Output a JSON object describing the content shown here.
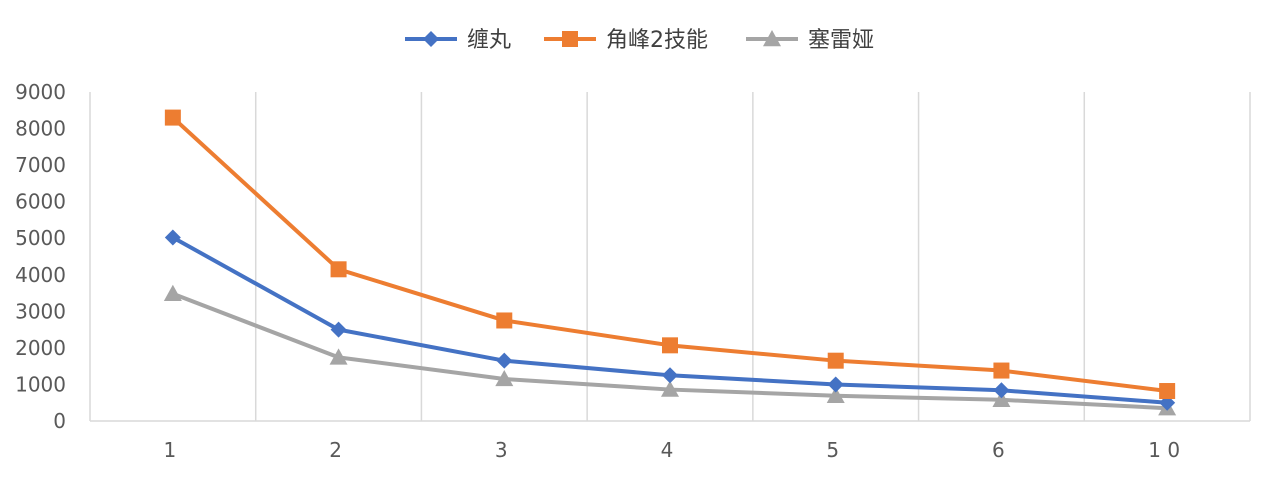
{
  "chart_data": {
    "type": "line",
    "categories": [
      "1",
      "2",
      "3",
      "4",
      "5",
      "6",
      "1 0"
    ],
    "ylim": [
      0,
      9000
    ],
    "yticks": [
      0,
      1000,
      2000,
      3000,
      4000,
      5000,
      6000,
      7000,
      8000,
      9000
    ],
    "grid": "vertical",
    "legend": "top-center",
    "series": [
      {
        "name": "缠丸",
        "color": "#4472C4",
        "marker": "diamond",
        "values": [
          5020,
          2500,
          1650,
          1250,
          1000,
          840,
          500
        ]
      },
      {
        "name": "角峰2技能",
        "color": "#ED7D31",
        "marker": "square",
        "values": [
          8300,
          4150,
          2750,
          2070,
          1650,
          1380,
          820
        ]
      },
      {
        "name": "塞雷娅",
        "color": "#A5A5A5",
        "marker": "triangle",
        "values": [
          3480,
          1740,
          1150,
          860,
          690,
          580,
          350
        ]
      }
    ]
  }
}
